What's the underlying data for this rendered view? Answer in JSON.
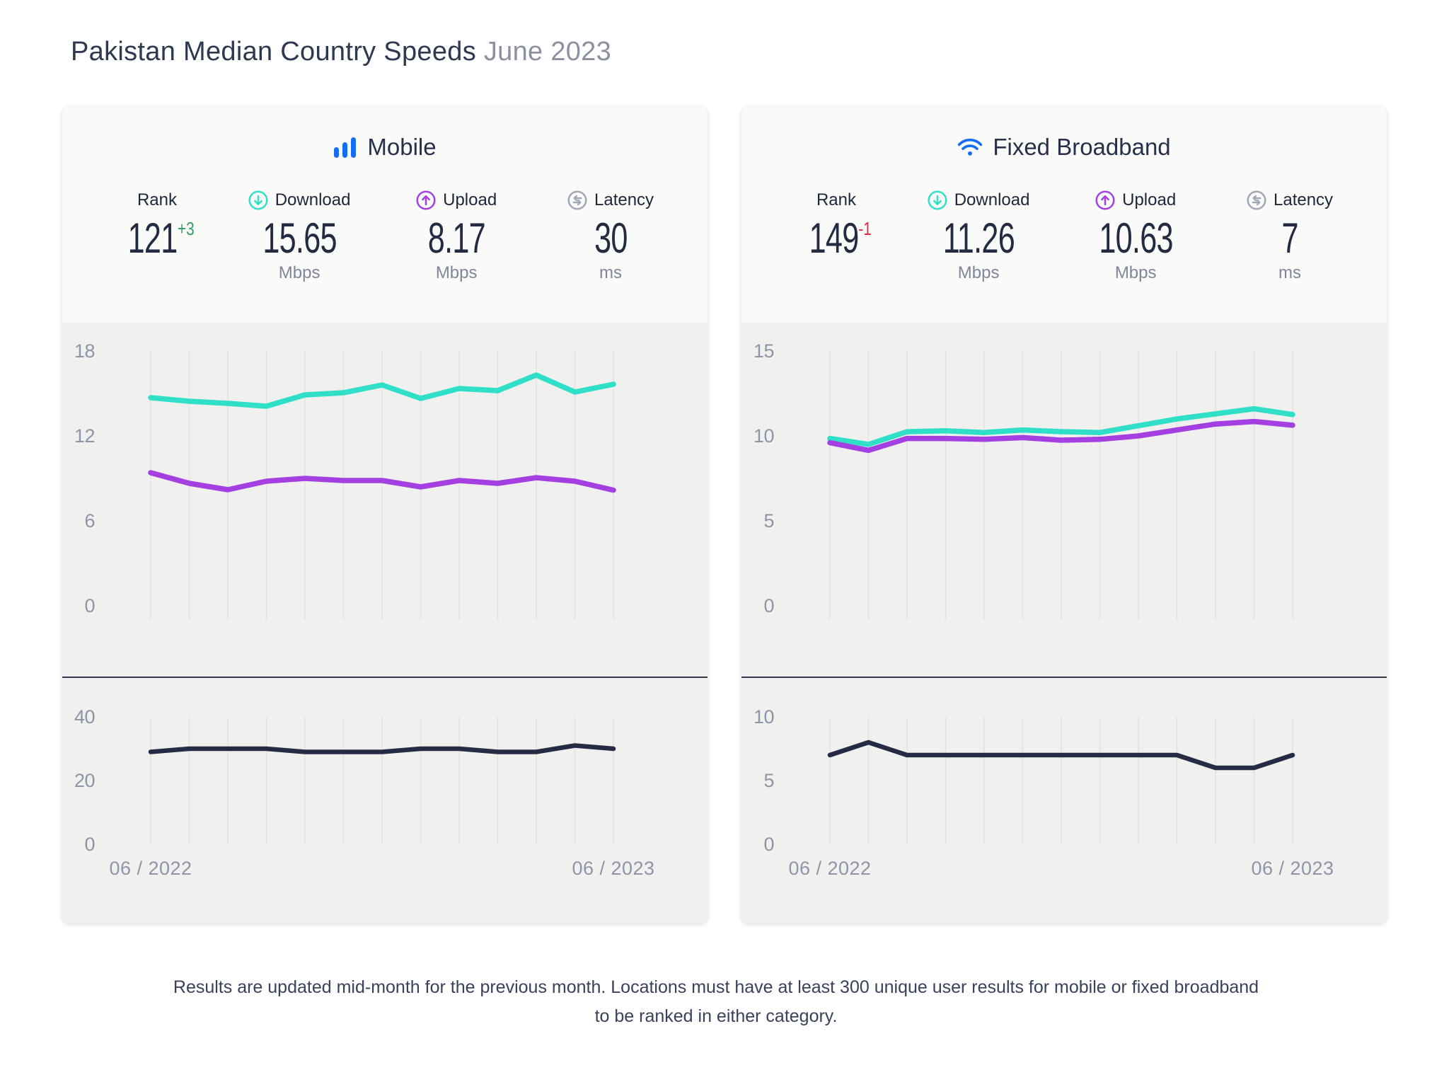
{
  "page": {
    "title": "Pakistan Median Country Speeds",
    "subtitle": "June 2023",
    "footer_line1": "Results are updated mid-month for the previous month. Locations must have at least 300 unique user results for mobile or fixed broadband",
    "footer_line2": "to be ranked in either category."
  },
  "colors": {
    "accent_blue": "#146ef5",
    "download_teal": "#2fdfc8",
    "upload_purple": "#a43fe1",
    "latency_dark": "#252b45",
    "latency_gray_icon": "#a2a7b7",
    "rank_up_green": "#2f9e5f",
    "rank_down_red": "#e02e49",
    "chart_bg": "#f0f0ee",
    "header_bg": "#fafaf9"
  },
  "cards": [
    {
      "title": "Mobile",
      "stats": [
        {
          "label": "Rank",
          "value": "121",
          "change": "+3",
          "change_class": "sup up",
          "unit": ""
        },
        {
          "label": "Download",
          "value": "15.65",
          "unit": "Mbps"
        },
        {
          "label": "Upload",
          "value": "8.17",
          "unit": "Mbps"
        },
        {
          "label": "Latency",
          "value": "30",
          "unit": "ms"
        }
      ]
    },
    {
      "title": "Fixed Broadband",
      "stats": [
        {
          "label": "Rank",
          "value": "149",
          "change": "-1",
          "change_class": "sup down",
          "unit": ""
        },
        {
          "label": "Download",
          "value": "11.26",
          "unit": "Mbps"
        },
        {
          "label": "Upload",
          "value": "10.63",
          "unit": "Mbps"
        },
        {
          "label": "Latency",
          "value": "7",
          "unit": "ms"
        }
      ]
    }
  ],
  "chart_data": [
    {
      "id": "mobile-speeds",
      "type": "line",
      "title": "Mobile download and upload speeds (Mbps)",
      "x": [
        "06/2022",
        "07/2022",
        "08/2022",
        "09/2022",
        "10/2022",
        "11/2022",
        "12/2022",
        "01/2023",
        "02/2023",
        "03/2023",
        "04/2023",
        "05/2023",
        "06/2023"
      ],
      "series": [
        {
          "name": "Download",
          "color": "#2fdfc8",
          "values": [
            14.7,
            14.45,
            14.3,
            14.1,
            14.9,
            15.05,
            15.6,
            14.65,
            15.35,
            15.2,
            16.3,
            15.1,
            15.65
          ]
        },
        {
          "name": "Upload",
          "color": "#a43fe1",
          "values": [
            9.4,
            8.65,
            8.2,
            8.8,
            9.0,
            8.85,
            8.85,
            8.4,
            8.85,
            8.65,
            9.05,
            8.8,
            8.17
          ]
        }
      ],
      "yticks": [
        18,
        12,
        6,
        0
      ],
      "ylim": [
        0,
        19.5
      ],
      "grid": "vertical",
      "legend": "none",
      "x_axis_labels": [
        "06 / 2022",
        "06 / 2023"
      ]
    },
    {
      "id": "mobile-latency",
      "type": "line",
      "title": "Mobile latency (ms)",
      "x": [
        "06/2022",
        "07/2022",
        "08/2022",
        "09/2022",
        "10/2022",
        "11/2022",
        "12/2022",
        "01/2023",
        "02/2023",
        "03/2023",
        "04/2023",
        "05/2023",
        "06/2023"
      ],
      "series": [
        {
          "name": "Latency",
          "color": "#252b45",
          "values": [
            29,
            30,
            30,
            30,
            29,
            29,
            29,
            30,
            30,
            29,
            29,
            31,
            30
          ]
        }
      ],
      "yticks": [
        40,
        20,
        0
      ],
      "ylim": [
        0,
        43
      ],
      "grid": "vertical",
      "legend": "none",
      "x_axis_labels": [
        "06 / 2022",
        "06 / 2023"
      ]
    },
    {
      "id": "fixed-speeds",
      "type": "line",
      "title": "Fixed broadband download and upload speeds (Mbps)",
      "x": [
        "06/2022",
        "07/2022",
        "08/2022",
        "09/2022",
        "10/2022",
        "11/2022",
        "12/2022",
        "01/2023",
        "02/2023",
        "03/2023",
        "04/2023",
        "05/2023",
        "06/2023"
      ],
      "series": [
        {
          "name": "Download",
          "color": "#2fdfc8",
          "values": [
            9.85,
            9.5,
            10.25,
            10.3,
            10.2,
            10.35,
            10.25,
            10.2,
            10.6,
            11.0,
            11.3,
            11.6,
            11.26
          ]
        },
        {
          "name": "Upload",
          "color": "#a43fe1",
          "values": [
            9.6,
            9.15,
            9.85,
            9.85,
            9.8,
            9.9,
            9.75,
            9.8,
            10.0,
            10.35,
            10.7,
            10.85,
            10.63
          ]
        }
      ],
      "yticks": [
        15,
        10,
        5,
        0
      ],
      "ylim": [
        0,
        16.2
      ],
      "grid": "vertical",
      "legend": "none",
      "x_axis_labels": [
        "06 / 2022",
        "06 / 2023"
      ]
    },
    {
      "id": "fixed-latency",
      "type": "line",
      "title": "Fixed broadband latency (ms)",
      "x": [
        "06/2022",
        "07/2022",
        "08/2022",
        "09/2022",
        "10/2022",
        "11/2022",
        "12/2022",
        "01/2023",
        "02/2023",
        "03/2023",
        "04/2023",
        "05/2023",
        "06/2023"
      ],
      "series": [
        {
          "name": "Latency",
          "color": "#252b45",
          "values": [
            7,
            8,
            7,
            7,
            7,
            7,
            7,
            7,
            7,
            7,
            6,
            6,
            7
          ]
        }
      ],
      "yticks": [
        10,
        5,
        0
      ],
      "ylim": [
        0,
        10.8
      ],
      "grid": "vertical",
      "legend": "none",
      "x_axis_labels": [
        "06 / 2022",
        "06 / 2023"
      ]
    }
  ]
}
